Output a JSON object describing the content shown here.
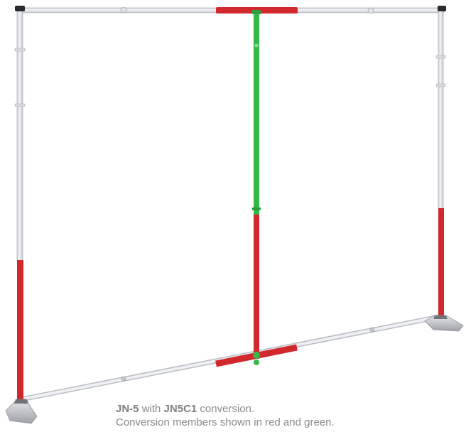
{
  "caption": {
    "line1_model": "JN-5",
    "line1_with": "with",
    "line1_kit": "JN5C1",
    "line1_rest": "conversion.",
    "line2": "Conversion members shown in red and green."
  },
  "colors": {
    "background": "#ffffff",
    "aluminum_pole": "#e2e4e8",
    "pole_outline": "#b9bcc2",
    "conversion_red": "#d0282c",
    "conversion_green": "#35b84a",
    "caption_text": "#8a8a8a"
  }
}
